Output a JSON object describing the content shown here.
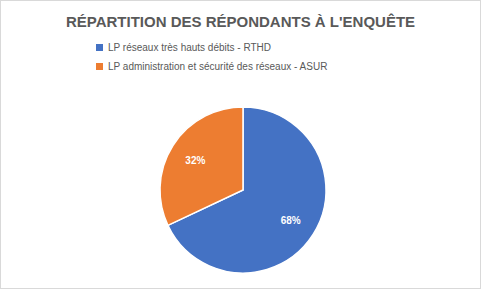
{
  "chart_data": {
    "type": "pie",
    "title": "RÉPARTITION DES RÉPONDANTS À L'ENQUÊTE",
    "categories": [
      "LP réseaux très hauts débits - RTHD",
      "LP administration et sécurité des réseaux - ASUR"
    ],
    "values": [
      68,
      32
    ],
    "value_labels": [
      "68%",
      "32%"
    ],
    "colors": [
      "#4472c4",
      "#ed7d31"
    ],
    "data_labels": true,
    "legend": "top"
  }
}
